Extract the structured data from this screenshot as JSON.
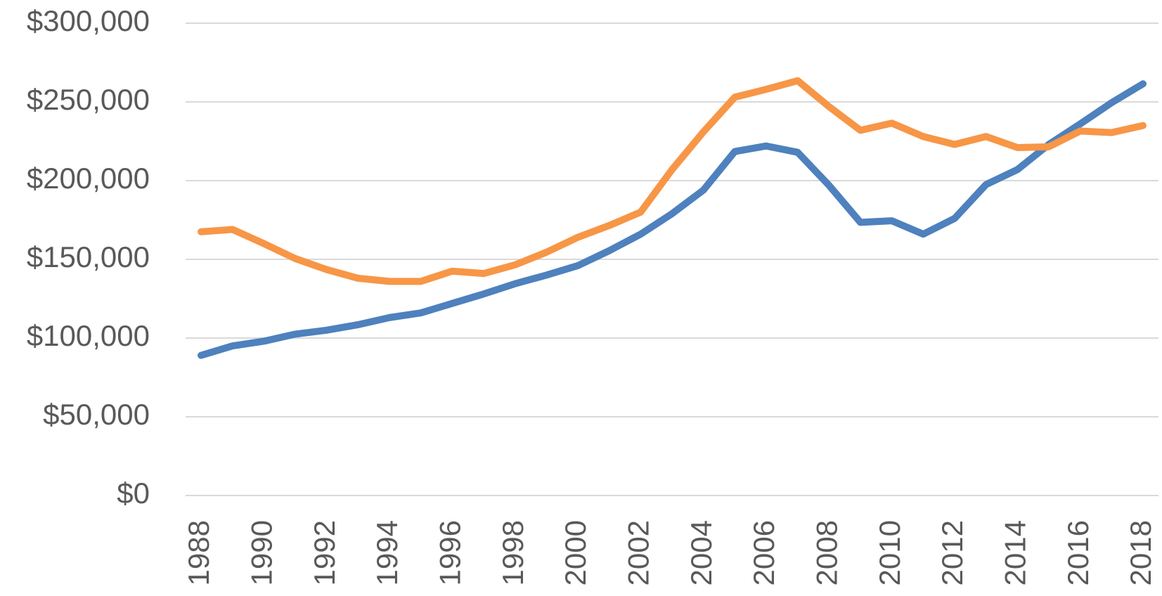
{
  "chart_data": {
    "type": "line",
    "x": [
      1988,
      1989,
      1990,
      1991,
      1992,
      1993,
      1994,
      1995,
      1996,
      1997,
      1998,
      1999,
      2000,
      2001,
      2002,
      2003,
      2004,
      2005,
      2006,
      2007,
      2008,
      2009,
      2010,
      2011,
      2012,
      2013,
      2014,
      2015,
      2016,
      2017,
      2018
    ],
    "series": [
      {
        "color": "#4e81bd",
        "values": [
          89000,
          95000,
          98000,
          102500,
          105000,
          108500,
          113000,
          116000,
          122000,
          128000,
          134500,
          140000,
          146000,
          155500,
          166000,
          179000,
          194000,
          218500,
          222000,
          218000,
          197000,
          173500,
          174500,
          166000,
          176000,
          197500,
          207000,
          223000,
          236000,
          249500,
          261500
        ]
      },
      {
        "color": "#f79646",
        "values": [
          167500,
          169000,
          160000,
          150500,
          143500,
          138000,
          136000,
          136000,
          142500,
          141000,
          146500,
          154500,
          164000,
          171500,
          180000,
          207000,
          231000,
          253000,
          258000,
          263500,
          247000,
          232000,
          236500,
          228000,
          223000,
          228000,
          221000,
          221500,
          231500,
          230500,
          235000
        ]
      }
    ],
    "xlim": [
      1988,
      2018
    ],
    "xticks": [
      1988,
      1990,
      1992,
      1994,
      1996,
      1998,
      2000,
      2002,
      2004,
      2006,
      2008,
      2010,
      2012,
      2014,
      2016,
      2018
    ],
    "ylim": [
      0,
      300000
    ],
    "yticks": [
      {
        "value": 0,
        "label": "$0"
      },
      {
        "value": 50000,
        "label": "$50,000"
      },
      {
        "value": 100000,
        "label": "$100,000"
      },
      {
        "value": 150000,
        "label": "$150,000"
      },
      {
        "value": 200000,
        "label": "$200,000"
      },
      {
        "value": 250000,
        "label": "$250,000"
      },
      {
        "value": 300000,
        "label": "$300,000"
      }
    ],
    "grid": true
  }
}
